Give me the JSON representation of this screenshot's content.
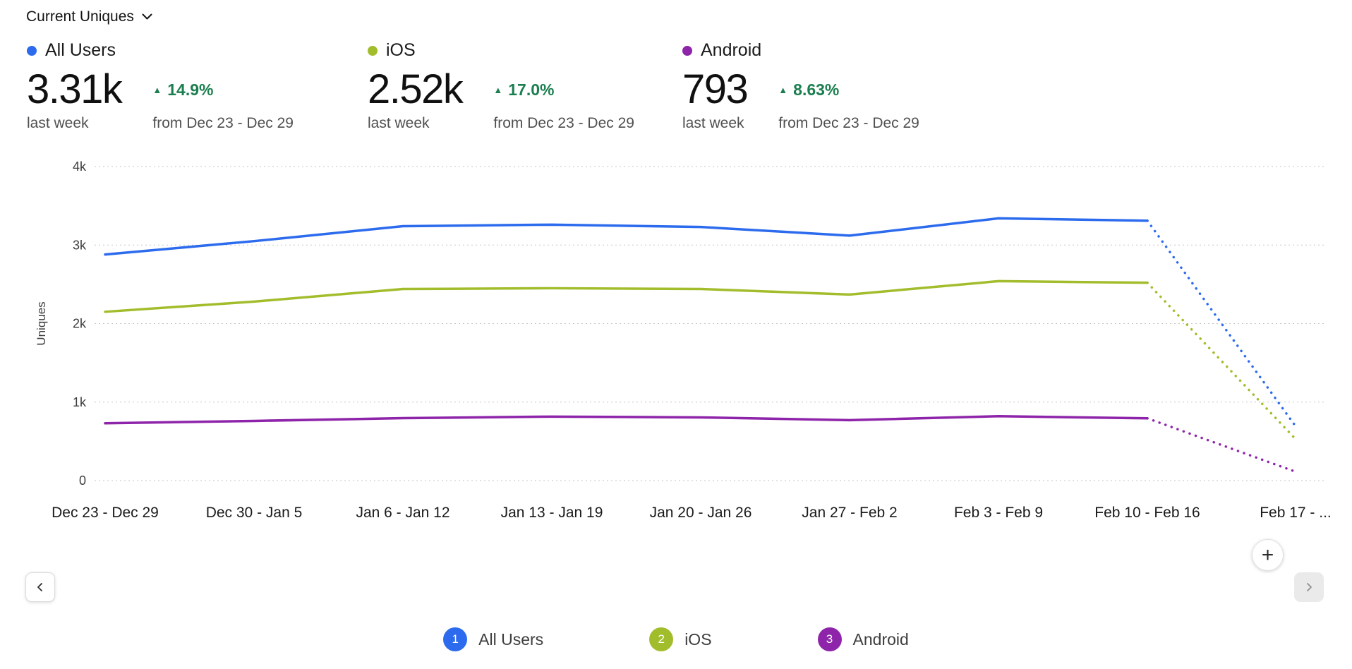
{
  "header": {
    "title": "Current Uniques"
  },
  "icons": {
    "plus": "+",
    "trend_up": "▲"
  },
  "theme": {
    "positive_change_color": "#1b7e4f"
  },
  "metrics": [
    {
      "name": "All Users",
      "color": "#2c6bed",
      "value": "3.31k",
      "period": "last week",
      "change": "14.9%",
      "change_direction": "up",
      "compare": "from Dec 23 - Dec 29"
    },
    {
      "name": "iOS",
      "color": "#a2bd2c",
      "value": "2.52k",
      "period": "last week",
      "change": "17.0%",
      "change_direction": "up",
      "compare": "from Dec 23 - Dec 29"
    },
    {
      "name": "Android",
      "color": "#8e24aa",
      "value": "793",
      "period": "last week",
      "change": "8.63%",
      "change_direction": "up",
      "compare": "from Dec 23 - Dec 29"
    }
  ],
  "chart_data": {
    "type": "line",
    "title": "Current Uniques",
    "ylabel": "Uniques",
    "ylim": [
      0,
      4000
    ],
    "yticks": [
      "0",
      "1k",
      "2k",
      "3k",
      "4k"
    ],
    "grid": "dotted-horizontal",
    "legend_position": "bottom",
    "categories": [
      "Dec 23 - Dec 29",
      "Dec 30 - Jan 5",
      "Jan 6 - Jan 12",
      "Jan 13 - Jan 19",
      "Jan 20 - Jan 26",
      "Jan 27 - Feb 2",
      "Feb 3 - Feb 9",
      "Feb 10 - Feb 16",
      "Feb 17 - ..."
    ],
    "series": [
      {
        "name": "All Users",
        "color": "#2c6bed",
        "values": [
          2880,
          3050,
          3240,
          3260,
          3230,
          3120,
          3340,
          3310,
          680
        ],
        "dotted_from_index": 7
      },
      {
        "name": "iOS",
        "color": "#a2bd2c",
        "values": [
          2150,
          2280,
          2440,
          2450,
          2440,
          2370,
          2540,
          2520,
          520
        ],
        "dotted_from_index": 7
      },
      {
        "name": "Android",
        "color": "#8e24aa",
        "values": [
          730,
          760,
          795,
          815,
          805,
          770,
          820,
          793,
          110
        ],
        "dotted_from_index": 7
      }
    ]
  },
  "legend": {
    "items": [
      {
        "index": "1",
        "label": "All Users",
        "color": "#2c6bed"
      },
      {
        "index": "2",
        "label": "iOS",
        "color": "#a2bd2c"
      },
      {
        "index": "3",
        "label": "Android",
        "color": "#8e24aa"
      }
    ]
  }
}
